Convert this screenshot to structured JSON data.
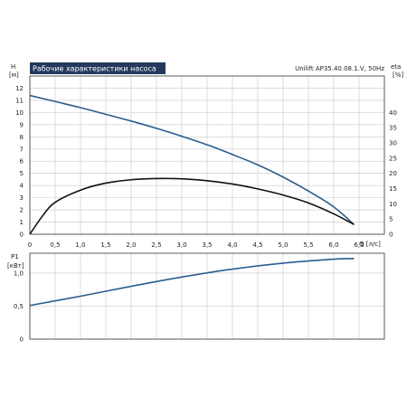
{
  "chart_data": [
    {
      "type": "line",
      "title": "Рабочие характеристики насоса",
      "subtitle": "Unilift AP35.40.08.1.V, 50Hz",
      "xlabel": "Q [л/с]",
      "ylabel": "H",
      "ylabel_unit": "[м]",
      "y2label": "eta",
      "y2label_unit": "[%]",
      "xlim": [
        0,
        7
      ],
      "ylim": [
        0,
        13
      ],
      "y2lim": [
        0,
        52
      ],
      "x_ticks": [
        "0",
        "0,5",
        "1,0",
        "1,5",
        "2,0",
        "2,5",
        "3,0",
        "3,5",
        "4,0",
        "4,5",
        "5,0",
        "5,5",
        "6,0",
        "6,5"
      ],
      "y_ticks": [
        "0",
        "1",
        "2",
        "3",
        "4",
        "5",
        "6",
        "7",
        "8",
        "9",
        "10",
        "11",
        "12"
      ],
      "y2_ticks": [
        "0",
        "5",
        "10",
        "15",
        "20",
        "25",
        "30",
        "35",
        "40"
      ],
      "grid": true,
      "series": [
        {
          "axis": "left",
          "color": "#2a5d8f",
          "x": [
            0,
            0.5,
            1.0,
            1.5,
            2.0,
            2.5,
            3.0,
            3.5,
            4.0,
            4.5,
            5.0,
            5.5,
            6.0,
            6.4
          ],
          "values": [
            11.4,
            10.9,
            10.4,
            9.85,
            9.3,
            8.7,
            8.05,
            7.35,
            6.55,
            5.7,
            4.7,
            3.55,
            2.25,
            0.8
          ]
        },
        {
          "axis": "right",
          "color": "#111111",
          "x": [
            0,
            0.25,
            0.5,
            1.0,
            1.5,
            2.0,
            2.5,
            2.8,
            3.0,
            3.5,
            4.0,
            4.5,
            5.0,
            5.5,
            6.0,
            6.4
          ],
          "values": [
            0,
            6,
            10.5,
            14.5,
            16.8,
            17.9,
            18.3,
            18.3,
            18.2,
            17.6,
            16.5,
            14.9,
            12.9,
            10.3,
            6.7,
            3.2
          ]
        }
      ]
    },
    {
      "type": "line",
      "ylabel": "P1",
      "ylabel_unit": "[кВт]",
      "xlim": [
        0,
        7
      ],
      "ylim": [
        0,
        1.3
      ],
      "y_ticks": [
        "0",
        "0,5",
        "1,0"
      ],
      "grid": true,
      "series": [
        {
          "color": "#2a5d8f",
          "x": [
            0,
            1.0,
            2.0,
            3.0,
            4.0,
            5.0,
            6.0,
            6.4
          ],
          "values": [
            0.51,
            0.65,
            0.8,
            0.94,
            1.06,
            1.15,
            1.21,
            1.22
          ]
        }
      ]
    }
  ],
  "colors": {
    "title_background": "#233a5e",
    "grid": "#c8c8c8",
    "axes": "#333333"
  }
}
